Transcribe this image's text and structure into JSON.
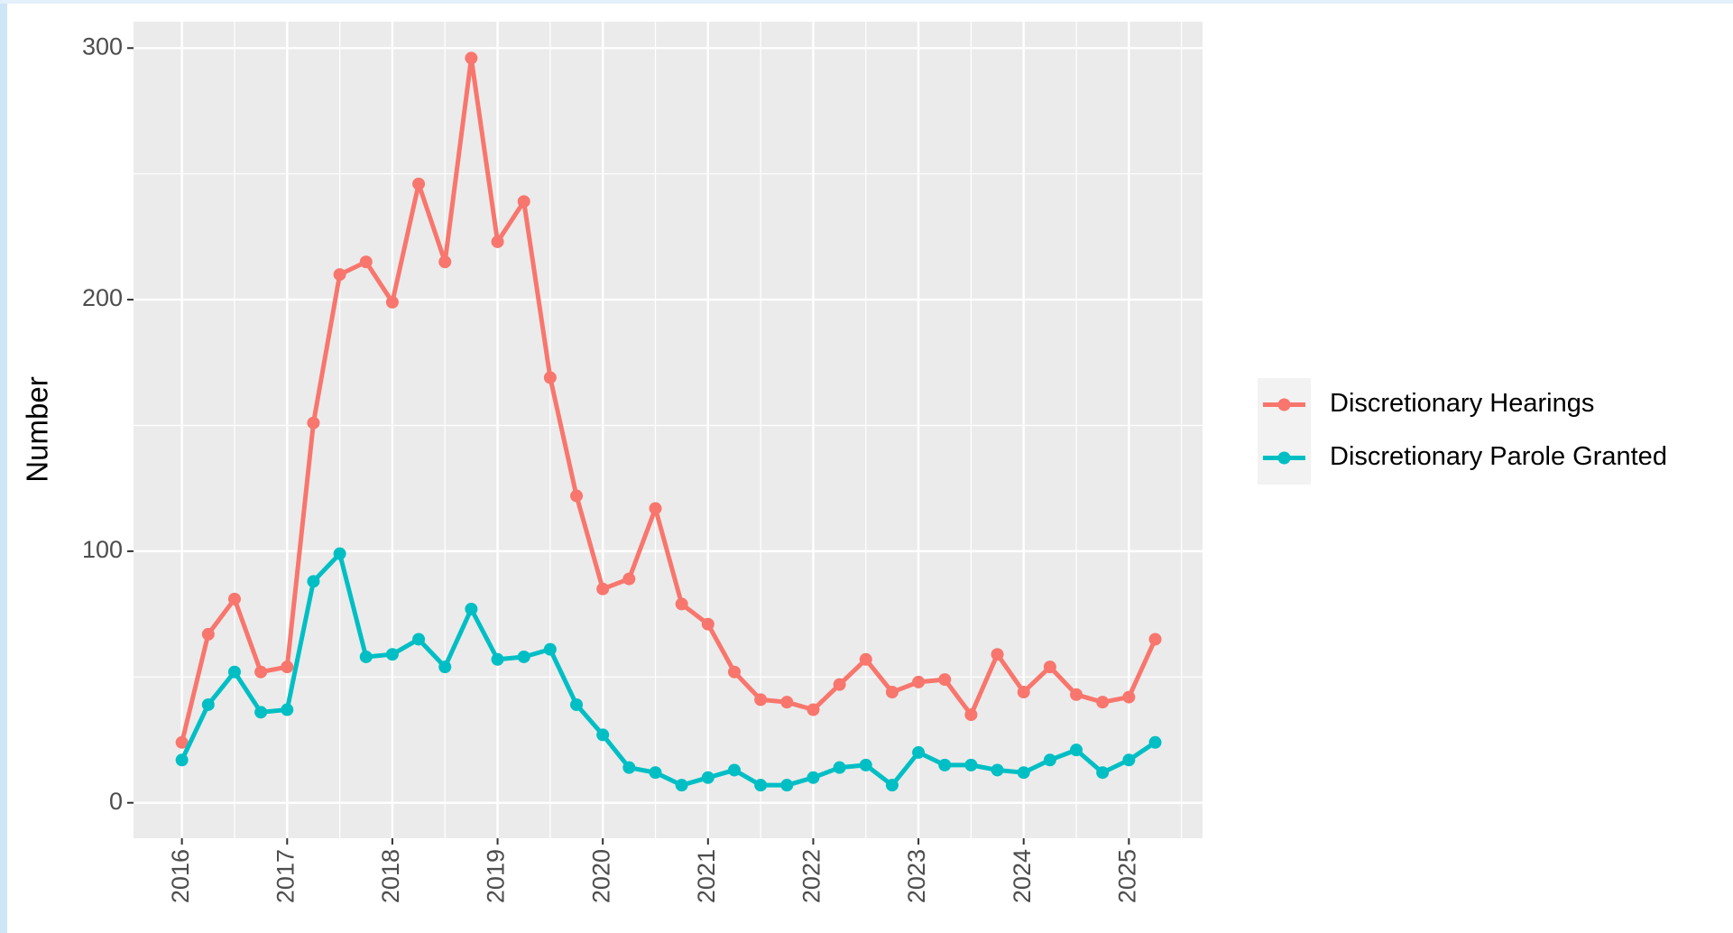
{
  "chart_data": {
    "type": "line",
    "ylabel": "Number",
    "x": [
      2016,
      2016.25,
      2016.5,
      2016.75,
      2017,
      2017.25,
      2017.5,
      2017.75,
      2018,
      2018.25,
      2018.5,
      2018.75,
      2019,
      2019.25,
      2019.5,
      2019.75,
      2020,
      2020.25,
      2020.5,
      2020.75,
      2021,
      2021.25,
      2021.5,
      2021.75,
      2022,
      2022.25,
      2022.5,
      2022.75,
      2023,
      2023.25,
      2023.5,
      2023.75,
      2024,
      2024.25,
      2024.5,
      2024.75,
      2025,
      2025.25
    ],
    "series": [
      {
        "name": "Discretionary Hearings",
        "color": "#f8766d",
        "values": [
          24,
          67,
          81,
          52,
          54,
          151,
          210,
          215,
          199,
          246,
          215,
          296,
          223,
          239,
          169,
          122,
          85,
          89,
          117,
          79,
          71,
          52,
          41,
          40,
          37,
          47,
          57,
          44,
          48,
          49,
          35,
          59,
          44,
          54,
          43,
          40,
          42,
          65
        ]
      },
      {
        "name": "Discretionary Parole Granted",
        "color": "#00bfc4",
        "values": [
          17,
          39,
          52,
          36,
          37,
          88,
          99,
          58,
          59,
          65,
          54,
          77,
          57,
          58,
          61,
          39,
          27,
          14,
          12,
          7,
          10,
          13,
          7,
          7,
          10,
          14,
          15,
          7,
          20,
          15,
          15,
          13,
          12,
          17,
          21,
          12,
          17,
          24
        ]
      }
    ],
    "xlim": [
      2015.54,
      2025.7
    ],
    "ylim": [
      -14.1,
      310.5
    ],
    "xticks": [
      2016,
      2017,
      2018,
      2019,
      2020,
      2021,
      2022,
      2023,
      2024,
      2025
    ],
    "yticks": [
      0,
      100,
      200,
      300
    ],
    "grid": true,
    "legend": "right"
  }
}
